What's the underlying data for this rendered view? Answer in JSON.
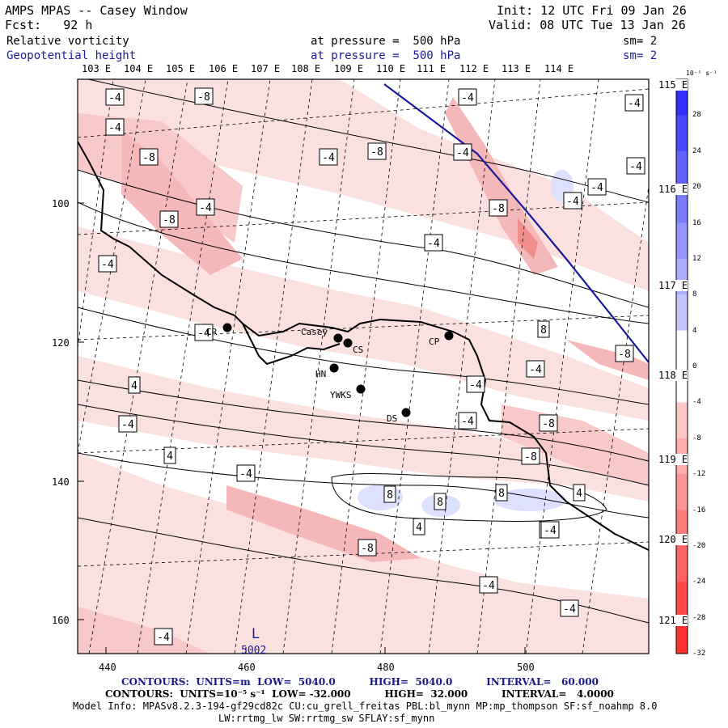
{
  "header": {
    "title": "AMPS MPAS -- Casey Window",
    "forecast": "Fcst:   92 h",
    "init": "Init: 12 UTC Fri 09 Jan 26",
    "valid": "Valid: 08 UTC Tue 13 Jan 26",
    "field1": {
      "name": "Relative vorticity",
      "level": "at pressure =  500 hPa",
      "smooth": "sm= 2"
    },
    "field2": {
      "name": "Geopotential height",
      "level": "at pressure =  500 hPa",
      "smooth": "sm= 2"
    }
  },
  "lon_labels_top": [
    "103 E",
    "104 E",
    "105 E",
    "106 E",
    "107 E",
    "108 E",
    "109 E",
    "110 E",
    "111 E",
    "112 E",
    "113 E",
    "114 E"
  ],
  "lon_labels_right": [
    "115 E",
    "116 E",
    "117 E",
    "118 E",
    "119 E",
    "120 E",
    "121 E"
  ],
  "x_axis": [
    "440",
    "460",
    "480",
    "500"
  ],
  "y_axis": [
    "100",
    "120",
    "140",
    "160"
  ],
  "stations": [
    {
      "name": "CR"
    },
    {
      "name": "Casey"
    },
    {
      "name": "CS"
    },
    {
      "name": "HN"
    },
    {
      "name": "YWKS"
    },
    {
      "name": "DS"
    },
    {
      "name": "CP"
    }
  ],
  "contour_labels": [
    "-4",
    "-8",
    "-4",
    "-4",
    "-4",
    "-8",
    "-4",
    "-8",
    "-4",
    "-4",
    "-4",
    "-8",
    "-4",
    "-4",
    "-8",
    "-4",
    "-4",
    "-4",
    "-8",
    "4",
    "8",
    "-4",
    "-4",
    "-4",
    "-4",
    "-8",
    "4",
    "-8",
    "-4",
    "-4",
    "-4",
    "-8",
    "4",
    "-4",
    "8",
    "8",
    "8",
    "4",
    "-4",
    "-8",
    "-4",
    "-4",
    "-4"
  ],
  "low_marker": {
    "letter": "L",
    "value": "5002"
  },
  "colorbar": {
    "unit_label": "10⁻⁵ s⁻¹",
    "ticks": [
      "32",
      "28",
      "24",
      "20",
      "16",
      "12",
      "8",
      "4",
      "0",
      "-4",
      "-8",
      "-12",
      "-16",
      "-20",
      "-24",
      "-28",
      "-32"
    ]
  },
  "footer": {
    "contours_height": "CONTOURS:  UNITS=m  LOW=  5040.0          HIGH=  5040.0          INTERVAL=   60.000",
    "contours_vort": "CONTOURS:  UNITS=10⁻⁵ s⁻¹  LOW= -32.000          HIGH=  32.000          INTERVAL=   4.0000",
    "model_info": "Model Info: MPASv8.2.3-194-gf29cd82c CU:cu_grell_freitas PBL:bl_mynn MP:mp_thompson SF:sf_noahmp 8.0",
    "model_info2": "LW:rrtmg_lw SW:rrtmg_sw SFLAY:sf_mynn"
  },
  "colors": {
    "positive": "#2a3fe0",
    "negative": "#e03030",
    "height_line": "#1a1a9e"
  }
}
